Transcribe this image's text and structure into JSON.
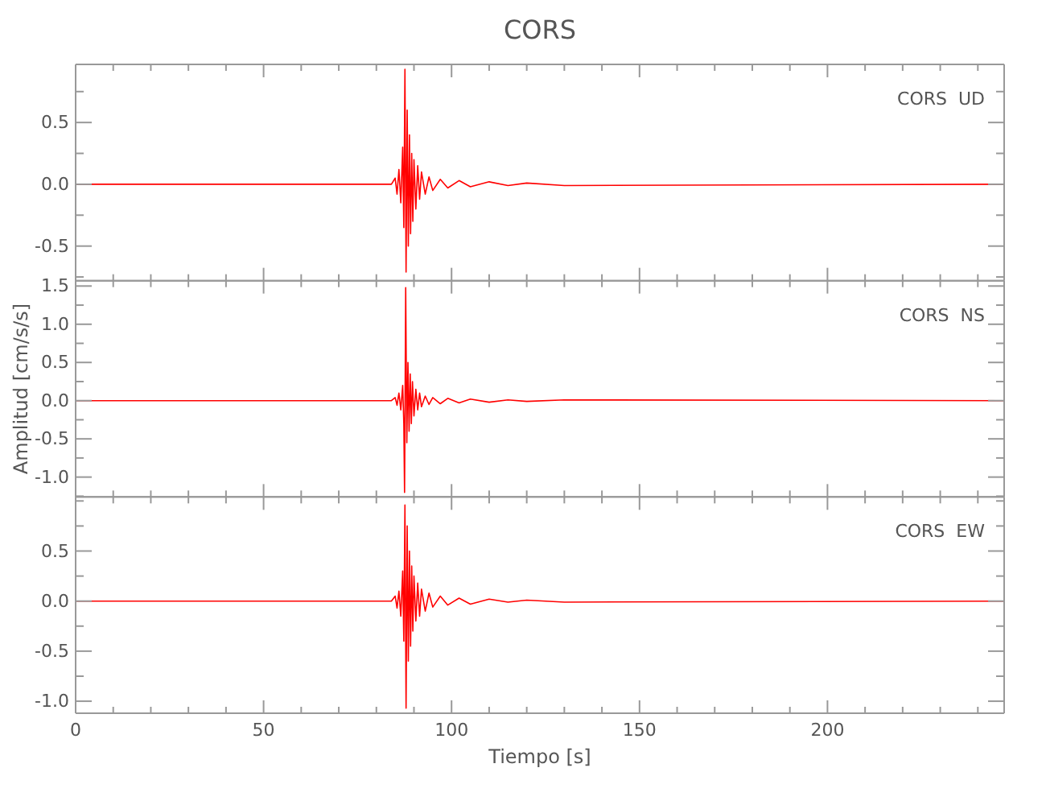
{
  "chart_data": [
    {
      "type": "line",
      "title": "CORS",
      "annotations": [
        "CORS  UD"
      ],
      "xlim": [
        0,
        247
      ],
      "ylim": [
        -0.78,
        0.97
      ],
      "tick_labels": "y",
      "grid": false,
      "marker": "none",
      "line_style": "solid",
      "xticks": [
        0,
        {
          "value": 10,
          "label": null
        },
        {
          "value": 20,
          "label": null
        },
        {
          "value": 30,
          "label": null
        },
        {
          "value": 40,
          "label": null
        },
        50,
        {
          "value": 60,
          "label": null
        },
        {
          "value": 70,
          "label": null
        },
        {
          "value": 80,
          "label": null
        },
        {
          "value": 90,
          "label": null
        },
        100,
        {
          "value": 110,
          "label": null
        },
        {
          "value": 120,
          "label": null
        },
        {
          "value": 130,
          "label": null
        },
        {
          "value": 140,
          "label": null
        },
        150,
        {
          "value": 160,
          "label": null
        },
        {
          "value": 170,
          "label": null
        },
        {
          "value": 180,
          "label": null
        },
        {
          "value": 190,
          "label": null
        },
        200,
        {
          "value": 210,
          "label": null
        },
        {
          "value": 220,
          "label": null
        },
        {
          "value": 230,
          "label": null
        },
        {
          "value": 240,
          "label": null
        }
      ],
      "yticks": [
        {
          "value": -0.75,
          "label": null
        },
        {
          "value": -0.5,
          "label": "-0.5"
        },
        {
          "value": -0.25,
          "label": null
        },
        {
          "value": 0,
          "label": "0.0"
        },
        {
          "value": 0.25,
          "label": null
        },
        {
          "value": 0.5,
          "label": "0.5"
        },
        {
          "value": 0.75,
          "label": null
        }
      ],
      "series": [
        {
          "color": "#ff0000",
          "x": [
            0,
            84,
            85,
            85.5,
            86,
            86.5,
            87,
            87.3,
            87.6,
            87.9,
            88.2,
            88.5,
            88.8,
            89.1,
            89.4,
            89.7,
            90,
            90.5,
            91,
            91.5,
            92,
            93,
            94,
            95,
            97,
            99,
            102,
            105,
            110,
            115,
            120,
            130,
            247
          ],
          "values": [
            0,
            0,
            0.05,
            -0.08,
            0.12,
            -0.15,
            0.3,
            -0.35,
            0.93,
            -0.71,
            0.6,
            -0.5,
            0.4,
            -0.4,
            0.25,
            -0.3,
            0.2,
            -0.2,
            0.15,
            -0.12,
            0.1,
            -0.08,
            0.06,
            -0.05,
            0.04,
            -0.03,
            0.03,
            -0.02,
            0.02,
            -0.01,
            0.01,
            -0.01,
            0
          ]
        }
      ]
    },
    {
      "type": "line",
      "ylabel": "Amplitud [cm/s/s]",
      "annotations": [
        "CORS  NS"
      ],
      "xlim": [
        0,
        247
      ],
      "ylim": [
        -1.26,
        1.57
      ],
      "tick_labels": "y",
      "grid": false,
      "marker": "none",
      "line_style": "solid",
      "xticks": [
        0,
        {
          "value": 10,
          "label": null
        },
        {
          "value": 20,
          "label": null
        },
        {
          "value": 30,
          "label": null
        },
        {
          "value": 40,
          "label": null
        },
        50,
        {
          "value": 60,
          "label": null
        },
        {
          "value": 70,
          "label": null
        },
        {
          "value": 80,
          "label": null
        },
        {
          "value": 90,
          "label": null
        },
        100,
        {
          "value": 110,
          "label": null
        },
        {
          "value": 120,
          "label": null
        },
        {
          "value": 130,
          "label": null
        },
        {
          "value": 140,
          "label": null
        },
        150,
        {
          "value": 160,
          "label": null
        },
        {
          "value": 170,
          "label": null
        },
        {
          "value": 180,
          "label": null
        },
        {
          "value": 190,
          "label": null
        },
        200,
        {
          "value": 210,
          "label": null
        },
        {
          "value": 220,
          "label": null
        },
        {
          "value": 230,
          "label": null
        },
        {
          "value": 240,
          "label": null
        }
      ],
      "yticks": [
        {
          "value": -1.25,
          "label": null
        },
        {
          "value": -1,
          "label": "-1.0"
        },
        {
          "value": -0.75,
          "label": null
        },
        {
          "value": -0.5,
          "label": "-0.5"
        },
        {
          "value": -0.25,
          "label": null
        },
        {
          "value": 0,
          "label": "0.0"
        },
        {
          "value": 0.25,
          "label": null
        },
        {
          "value": 0.5,
          "label": "0.5"
        },
        {
          "value": 0.75,
          "label": null
        },
        {
          "value": 1,
          "label": "1.0"
        },
        {
          "value": 1.25,
          "label": null
        },
        {
          "value": 1.5,
          "label": "1.5"
        }
      ],
      "series": [
        {
          "color": "#ff0000",
          "x": [
            0,
            84,
            85,
            85.5,
            86,
            86.5,
            87,
            87.3,
            87.5,
            87.8,
            88.1,
            88.4,
            88.7,
            89,
            89.3,
            89.6,
            90,
            90.5,
            91,
            91.5,
            92,
            93,
            94,
            95,
            97,
            99,
            102,
            105,
            110,
            115,
            120,
            130,
            247
          ],
          "values": [
            0,
            0,
            0.04,
            -0.06,
            0.1,
            -0.12,
            0.2,
            -0.3,
            -1.2,
            1.48,
            -0.55,
            0.5,
            -0.4,
            0.35,
            -0.3,
            0.25,
            -0.2,
            0.15,
            -0.12,
            0.1,
            -0.08,
            0.06,
            -0.05,
            0.04,
            -0.04,
            0.03,
            -0.03,
            0.02,
            -0.02,
            0.01,
            -0.01,
            0.01,
            0
          ]
        }
      ]
    },
    {
      "type": "line",
      "xlabel": "Tiempo [s]",
      "annotations": [
        "CORS  EW"
      ],
      "xlim": [
        0,
        247
      ],
      "ylim": [
        -1.12,
        1.04
      ],
      "grid": false,
      "marker": "none",
      "line_style": "solid",
      "xticks": [
        0,
        {
          "value": 10,
          "label": null
        },
        {
          "value": 20,
          "label": null
        },
        {
          "value": 30,
          "label": null
        },
        {
          "value": 40,
          "label": null
        },
        50,
        {
          "value": 60,
          "label": null
        },
        {
          "value": 70,
          "label": null
        },
        {
          "value": 80,
          "label": null
        },
        {
          "value": 90,
          "label": null
        },
        100,
        {
          "value": 110,
          "label": null
        },
        {
          "value": 120,
          "label": null
        },
        {
          "value": 130,
          "label": null
        },
        {
          "value": 140,
          "label": null
        },
        150,
        {
          "value": 160,
          "label": null
        },
        {
          "value": 170,
          "label": null
        },
        {
          "value": 180,
          "label": null
        },
        {
          "value": 190,
          "label": null
        },
        200,
        {
          "value": 210,
          "label": null
        },
        {
          "value": 220,
          "label": null
        },
        {
          "value": 230,
          "label": null
        },
        {
          "value": 240,
          "label": null
        }
      ],
      "yticks": [
        {
          "value": -1,
          "label": "-1.0"
        },
        {
          "value": -0.75,
          "label": null
        },
        {
          "value": -0.5,
          "label": "-0.5"
        },
        {
          "value": -0.25,
          "label": null
        },
        {
          "value": 0,
          "label": "0.0"
        },
        {
          "value": 0.25,
          "label": null
        },
        {
          "value": 0.5,
          "label": "0.5"
        },
        {
          "value": 0.75,
          "label": null
        },
        {
          "value": 1,
          "label": null
        }
      ],
      "series": [
        {
          "color": "#ff0000",
          "x": [
            0,
            84,
            85,
            85.5,
            86,
            86.5,
            87,
            87.3,
            87.6,
            87.9,
            88.2,
            88.5,
            88.8,
            89.1,
            89.4,
            89.7,
            90,
            90.5,
            91,
            91.5,
            92,
            93,
            94,
            95,
            97,
            99,
            102,
            105,
            110,
            115,
            120,
            130,
            247
          ],
          "values": [
            0,
            0,
            0.05,
            -0.07,
            0.1,
            -0.15,
            0.3,
            -0.4,
            0.96,
            -1.07,
            0.75,
            -0.6,
            0.5,
            -0.45,
            0.35,
            -0.3,
            0.25,
            -0.2,
            0.18,
            -0.15,
            0.12,
            -0.1,
            0.08,
            -0.06,
            0.05,
            -0.04,
            0.03,
            -0.03,
            0.02,
            -0.01,
            0.01,
            -0.01,
            0
          ]
        }
      ]
    }
  ]
}
